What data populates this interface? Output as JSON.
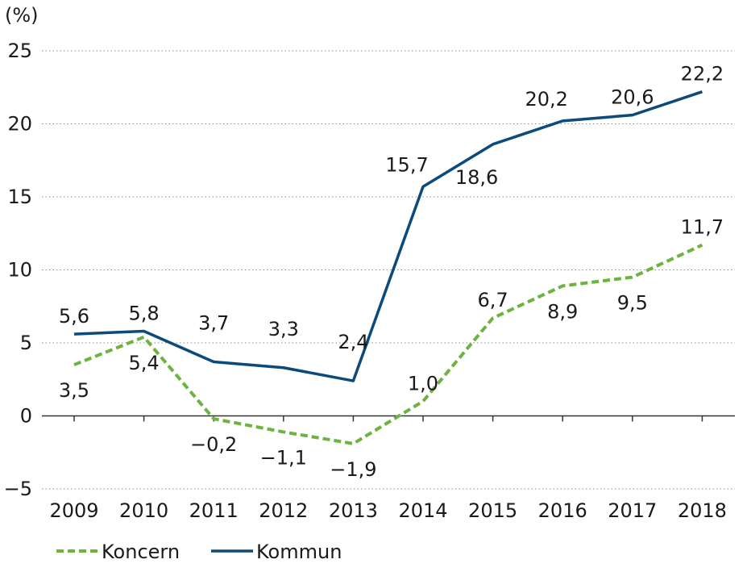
{
  "chart_data": {
    "type": "line",
    "unit_label": "(%)",
    "categories": [
      "2009",
      "2010",
      "2011",
      "2012",
      "2013",
      "2014",
      "2015",
      "2016",
      "2017",
      "2018"
    ],
    "ylim": [
      -5,
      25
    ],
    "yticks": [
      -5,
      0,
      5,
      10,
      15,
      20,
      25
    ],
    "ytick_labels": [
      "−5",
      "0",
      "5",
      "10",
      "15",
      "20",
      "25"
    ],
    "grid": true,
    "legend_position": "bottom-left",
    "series": [
      {
        "name": "Koncern",
        "color": "#6db33f",
        "style": "dashed",
        "values": [
          3.5,
          5.4,
          -0.2,
          -1.1,
          -1.9,
          1.0,
          6.7,
          8.9,
          9.5,
          11.7
        ],
        "labels": [
          "3,5",
          "5,4",
          "−0,2",
          "−1,1",
          "−1,9",
          "1,0",
          "6,7",
          "8,9",
          "9,5",
          "11,7"
        ]
      },
      {
        "name": "Kommun",
        "color": "#0b4a7a",
        "style": "solid",
        "values": [
          5.6,
          5.8,
          3.7,
          3.3,
          2.4,
          15.7,
          18.6,
          20.2,
          20.6,
          22.2
        ],
        "labels": [
          "5,6",
          "5,8",
          "3,7",
          "3,3",
          "2,4",
          "15,7",
          "18,6",
          "20,2",
          "20,6",
          "22,2"
        ]
      }
    ]
  }
}
